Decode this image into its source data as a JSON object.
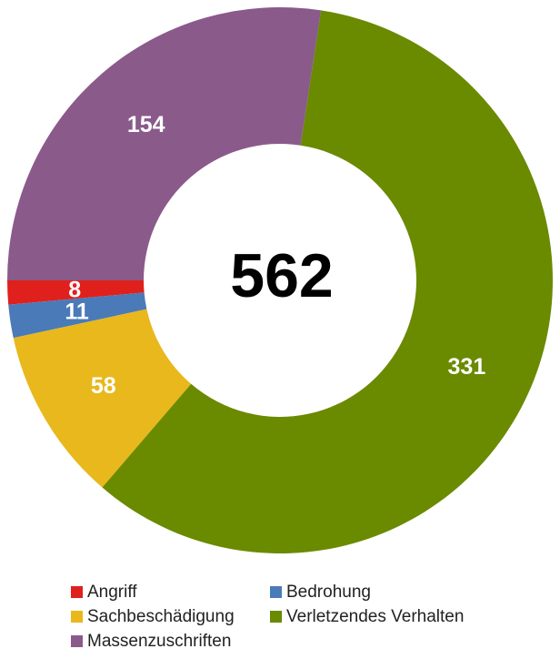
{
  "chart_data": {
    "type": "donut",
    "categories": [
      "Angriff",
      "Bedrohung",
      "Sachbeschädigung",
      "Verletzendes Verhalten",
      "Massenzuschriften"
    ],
    "values": [
      8,
      11,
      58,
      331,
      154
    ],
    "colors": [
      "#e0201c",
      "#4a7ab8",
      "#e8b81c",
      "#6a8a00",
      "#8a5a8a"
    ],
    "total": 562
  }
}
